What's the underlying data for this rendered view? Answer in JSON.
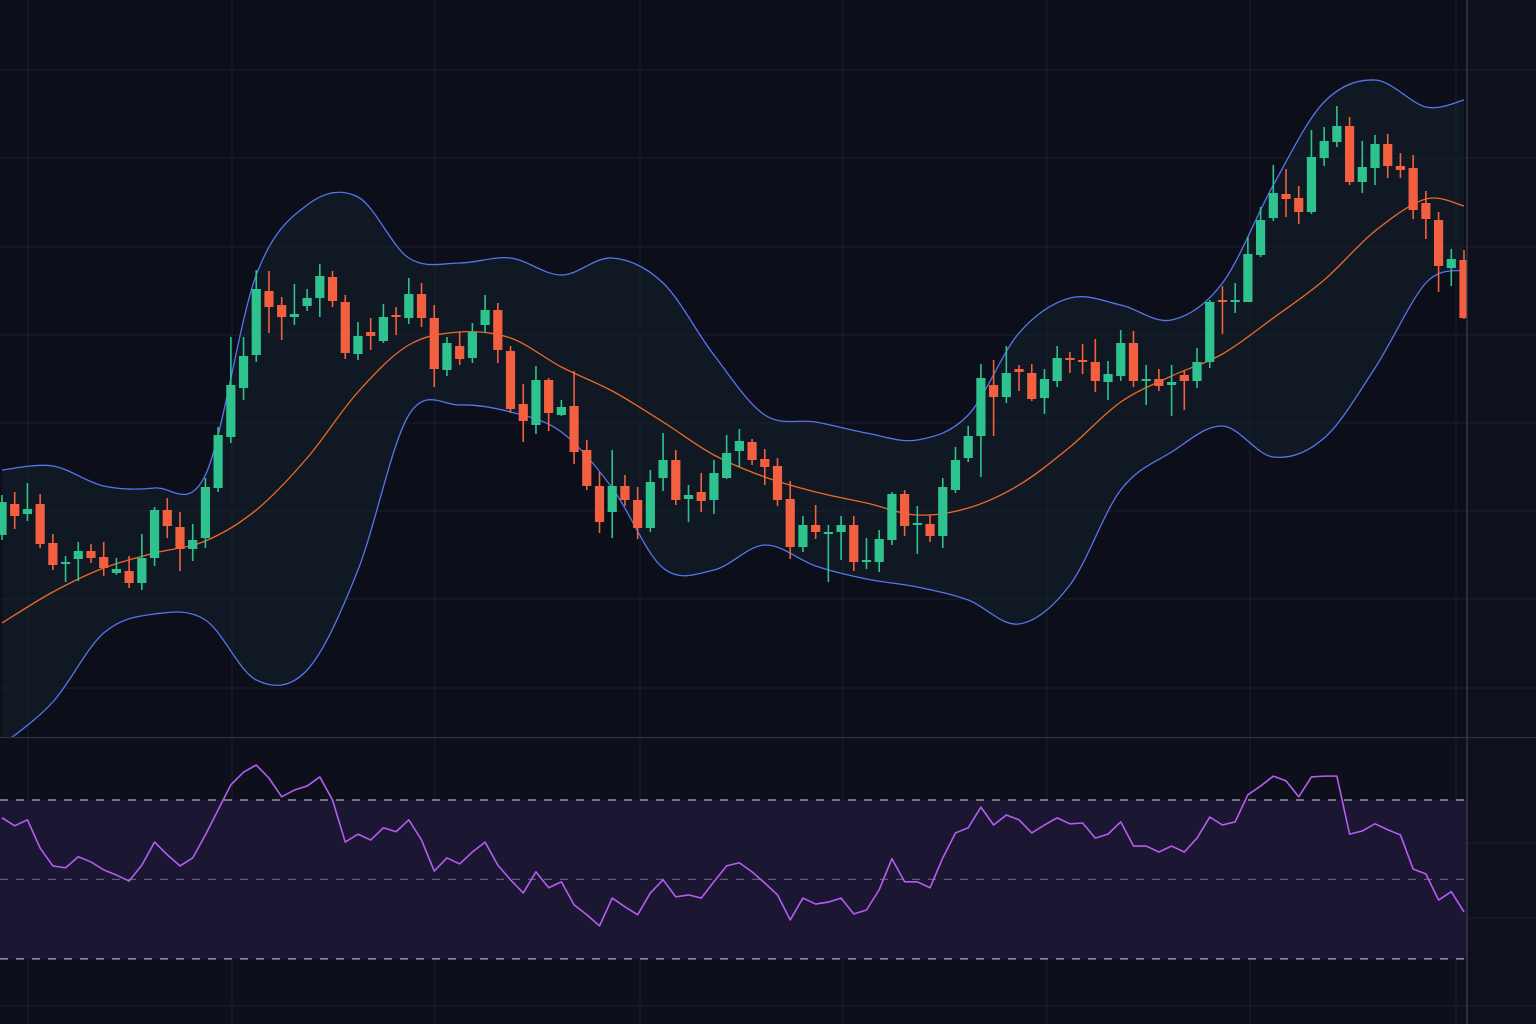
{
  "chart_data": [
    {
      "type": "candlestick",
      "title": "",
      "xlabel": "",
      "ylabel": "",
      "ylim": [
        26.3,
        100
      ],
      "grid": true,
      "colors": {
        "up": "#2ec28f",
        "down": "#f2603f",
        "bb_upper_lower": "#5874ee",
        "bb_middle": "#ee6a25",
        "bb_fill": "#14202e"
      },
      "candles_ohlc": [
        [
          46.5,
          50.5,
          46.0,
          49.8
        ],
        [
          49.6,
          50.8,
          47.1,
          48.4
        ],
        [
          48.6,
          51.7,
          47.9,
          49.1
        ],
        [
          49.6,
          50.6,
          45.2,
          45.6
        ],
        [
          45.7,
          46.6,
          43.0,
          43.5
        ],
        [
          43.6,
          44.4,
          41.8,
          43.8
        ],
        [
          44.1,
          45.8,
          41.9,
          44.9
        ],
        [
          44.9,
          45.6,
          43.7,
          44.2
        ],
        [
          44.3,
          45.8,
          42.4,
          43.2
        ],
        [
          42.7,
          44.2,
          42.5,
          43.1
        ],
        [
          42.9,
          44.4,
          41.2,
          41.7
        ],
        [
          41.7,
          46.6,
          41.0,
          44.2
        ],
        [
          44.2,
          49.3,
          43.4,
          49.0
        ],
        [
          49.0,
          50.2,
          46.2,
          47.4
        ],
        [
          47.3,
          48.8,
          42.9,
          45.1
        ],
        [
          45.1,
          47.6,
          43.9,
          46.0
        ],
        [
          46.2,
          52.2,
          45.2,
          51.3
        ],
        [
          51.2,
          57.3,
          50.8,
          56.5
        ],
        [
          56.3,
          66.3,
          55.7,
          61.5
        ],
        [
          61.2,
          66.3,
          60.0,
          64.4
        ],
        [
          64.5,
          73.0,
          63.8,
          71.1
        ],
        [
          70.9,
          72.9,
          66.7,
          69.3
        ],
        [
          69.5,
          70.3,
          66.0,
          68.3
        ],
        [
          68.3,
          71.6,
          67.5,
          68.6
        ],
        [
          69.4,
          71.1,
          68.9,
          70.2
        ],
        [
          70.2,
          73.6,
          68.3,
          72.4
        ],
        [
          72.3,
          72.9,
          69.3,
          69.9
        ],
        [
          69.8,
          70.5,
          64.1,
          64.7
        ],
        [
          64.6,
          67.8,
          64.0,
          66.4
        ],
        [
          66.8,
          68.2,
          65.0,
          66.4
        ],
        [
          65.9,
          69.6,
          65.7,
          68.3
        ],
        [
          68.5,
          69.3,
          66.5,
          68.3
        ],
        [
          68.2,
          72.2,
          67.6,
          70.6
        ],
        [
          70.6,
          71.7,
          67.3,
          68.2
        ],
        [
          68.2,
          69.5,
          61.3,
          63.1
        ],
        [
          63.0,
          66.3,
          62.4,
          65.7
        ],
        [
          65.4,
          66.8,
          63.5,
          64.1
        ],
        [
          64.2,
          67.7,
          63.7,
          66.8
        ],
        [
          67.5,
          70.5,
          66.7,
          69.0
        ],
        [
          69.0,
          69.7,
          63.7,
          65.0
        ],
        [
          64.9,
          65.4,
          58.7,
          59.1
        ],
        [
          59.6,
          61.6,
          55.8,
          57.9
        ],
        [
          57.5,
          63.4,
          56.6,
          62.0
        ],
        [
          62.0,
          62.2,
          56.9,
          58.7
        ],
        [
          58.5,
          60.0,
          58.4,
          59.3
        ],
        [
          59.4,
          62.9,
          53.6,
          54.8
        ],
        [
          55.0,
          56.0,
          51.0,
          51.4
        ],
        [
          51.4,
          52.8,
          46.7,
          47.8
        ],
        [
          48.8,
          55.0,
          46.2,
          51.4
        ],
        [
          51.4,
          52.5,
          49.4,
          50.0
        ],
        [
          50.0,
          51.3,
          46.1,
          47.2
        ],
        [
          47.2,
          53.0,
          46.8,
          51.8
        ],
        [
          52.2,
          56.7,
          50.9,
          54.0
        ],
        [
          54.0,
          55.0,
          49.5,
          50.0
        ],
        [
          50.1,
          51.5,
          47.8,
          50.5
        ],
        [
          50.8,
          52.7,
          48.8,
          49.9
        ],
        [
          50.0,
          54.0,
          48.6,
          52.7
        ],
        [
          52.2,
          56.5,
          52.1,
          54.7
        ],
        [
          54.9,
          57.1,
          53.3,
          55.9
        ],
        [
          55.8,
          56.1,
          53.5,
          54.0
        ],
        [
          54.1,
          55.1,
          51.5,
          53.3
        ],
        [
          53.4,
          54.2,
          49.4,
          50.0
        ],
        [
          50.1,
          51.9,
          44.1,
          45.3
        ],
        [
          45.3,
          48.4,
          44.8,
          47.5
        ],
        [
          47.5,
          49.5,
          46.1,
          46.8
        ],
        [
          46.6,
          47.5,
          41.8,
          46.8
        ],
        [
          46.8,
          48.4,
          44.0,
          47.5
        ],
        [
          47.5,
          48.4,
          42.9,
          43.8
        ],
        [
          43.8,
          46.2,
          43.1,
          44.0
        ],
        [
          43.8,
          47.0,
          42.8,
          46.1
        ],
        [
          46.0,
          50.8,
          45.5,
          50.6
        ],
        [
          50.6,
          51.0,
          46.4,
          47.4
        ],
        [
          47.6,
          49.4,
          44.6,
          47.7
        ],
        [
          47.6,
          48.5,
          45.8,
          46.4
        ],
        [
          46.4,
          52.2,
          45.2,
          51.3
        ],
        [
          51.0,
          55.3,
          50.7,
          54.0
        ],
        [
          54.2,
          57.4,
          53.8,
          56.4
        ],
        [
          56.4,
          63.6,
          52.3,
          62.2
        ],
        [
          61.5,
          64.0,
          56.4,
          60.3
        ],
        [
          60.3,
          65.4,
          59.7,
          62.7
        ],
        [
          63.1,
          63.5,
          60.9,
          62.8
        ],
        [
          62.7,
          63.6,
          59.9,
          60.1
        ],
        [
          60.2,
          63.1,
          58.6,
          62.1
        ],
        [
          61.9,
          65.4,
          61.3,
          64.2
        ],
        [
          64.2,
          64.8,
          62.7,
          64.0
        ],
        [
          64.0,
          65.6,
          62.6,
          63.9
        ],
        [
          63.8,
          66.1,
          60.8,
          61.9
        ],
        [
          61.8,
          63.9,
          60.0,
          62.6
        ],
        [
          62.4,
          67.0,
          61.9,
          65.7
        ],
        [
          65.7,
          66.9,
          61.3,
          61.9
        ],
        [
          61.9,
          63.5,
          59.5,
          62.1
        ],
        [
          62.1,
          63.1,
          60.9,
          61.4
        ],
        [
          61.5,
          63.5,
          58.4,
          61.8
        ],
        [
          62.5,
          62.9,
          59.0,
          61.9
        ],
        [
          61.9,
          65.2,
          61.2,
          63.8
        ],
        [
          63.8,
          70.0,
          63.2,
          69.8
        ],
        [
          70.0,
          71.4,
          66.6,
          69.8
        ],
        [
          69.9,
          71.7,
          68.7,
          70.0
        ],
        [
          69.8,
          76.3,
          69.8,
          74.6
        ],
        [
          74.5,
          79.3,
          74.3,
          78.0
        ],
        [
          78.2,
          83.5,
          77.9,
          80.7
        ],
        [
          80.6,
          83.1,
          78.3,
          80.1
        ],
        [
          80.2,
          81.4,
          77.6,
          78.8
        ],
        [
          78.8,
          87.0,
          78.6,
          84.3
        ],
        [
          84.2,
          87.3,
          83.4,
          85.9
        ],
        [
          85.8,
          89.4,
          85.3,
          87.4
        ],
        [
          87.4,
          88.3,
          81.5,
          81.8
        ],
        [
          81.8,
          85.9,
          80.7,
          83.3
        ],
        [
          83.2,
          86.5,
          81.5,
          85.6
        ],
        [
          85.6,
          86.6,
          82.2,
          83.4
        ],
        [
          83.4,
          84.7,
          82.2,
          83.0
        ],
        [
          83.2,
          84.5,
          78.1,
          79.0
        ],
        [
          79.7,
          80.9,
          76.1,
          78.1
        ],
        [
          78.0,
          78.8,
          70.8,
          73.4
        ],
        [
          73.2,
          75.1,
          71.4,
          74.1
        ],
        [
          74.0,
          75.0,
          68.1,
          68.2
        ]
      ],
      "bollinger": {
        "bar_index": [
          0,
          4,
          8,
          12,
          16,
          20,
          24,
          28,
          32,
          36,
          40,
          44,
          48,
          52,
          56,
          60,
          64,
          68,
          72,
          76,
          80,
          84,
          88,
          92,
          96,
          100,
          104,
          108,
          112,
          115
        ],
        "upper": [
          53.0,
          53.4,
          51.4,
          51.2,
          52.5,
          72.5,
          79.5,
          80.3,
          74.2,
          73.7,
          74.2,
          72.5,
          74.2,
          71.7,
          64.5,
          58.5,
          57.8,
          56.7,
          56.0,
          58.5,
          66.7,
          70.2,
          69.5,
          68.0,
          71.7,
          81.5,
          89.8,
          92.0,
          89.3,
          90.0
        ],
        "middle": [
          37.7,
          40.8,
          43.2,
          44.7,
          45.9,
          49.0,
          54.2,
          60.8,
          65.5,
          66.8,
          66.2,
          63.3,
          60.9,
          57.8,
          54.5,
          52.3,
          50.8,
          49.7,
          48.5,
          49.2,
          51.5,
          55.3,
          59.8,
          62.4,
          64.6,
          68.2,
          72.0,
          76.9,
          80.1,
          79.4
        ],
        "lower": [
          25.5,
          29.8,
          36.7,
          38.6,
          38.0,
          32.0,
          33.0,
          43.0,
          58.5,
          59.5,
          58.8,
          56.8,
          51.2,
          43.2,
          43.0,
          45.5,
          43.4,
          42.1,
          41.3,
          40.0,
          37.6,
          41.5,
          51.0,
          54.8,
          57.4,
          54.3,
          56.2,
          63.2,
          71.7,
          73.0
        ]
      }
    },
    {
      "type": "line",
      "title": "",
      "xlabel": "",
      "ylabel": "",
      "ylim": [
        13.6,
        85.6
      ],
      "grid": true,
      "levels": {
        "upper": 70,
        "mid": 50,
        "lower": 30
      },
      "colors": {
        "line": "#b55cf2",
        "zone": "#1b1733",
        "level": "#c9c9d2",
        "mid_level": "#5f5a78"
      },
      "values": [
        65.5,
        63.5,
        65.0,
        57.9,
        53.4,
        52.9,
        55.7,
        54.4,
        52.4,
        51.1,
        49.6,
        53.6,
        59.4,
        56.2,
        53.4,
        55.4,
        61.2,
        67.5,
        73.8,
        77.0,
        78.8,
        75.5,
        70.8,
        72.5,
        73.5,
        75.8,
        70.0,
        59.4,
        61.4,
        59.9,
        63.0,
        62.0,
        65.0,
        59.9,
        52.1,
        55.4,
        53.9,
        56.9,
        59.4,
        53.6,
        49.9,
        46.6,
        51.9,
        47.9,
        49.4,
        43.6,
        41.1,
        38.3,
        45.3,
        43.1,
        41.1,
        46.6,
        49.9,
        45.6,
        46.1,
        45.3,
        49.4,
        53.4,
        54.2,
        51.9,
        49.1,
        46.1,
        39.8,
        45.3,
        43.8,
        44.3,
        45.3,
        41.3,
        42.3,
        47.4,
        55.2,
        49.4,
        49.4,
        47.9,
        55.4,
        61.7,
        63.0,
        68.2,
        63.7,
        66.2,
        65.0,
        61.7,
        63.7,
        65.5,
        64.0,
        64.2,
        60.4,
        61.4,
        64.5,
        58.4,
        58.4,
        56.9,
        58.4,
        56.9,
        60.4,
        65.7,
        63.7,
        64.5,
        71.3,
        73.5,
        76.0,
        74.8,
        70.8,
        75.8,
        76.0,
        76.0,
        61.4,
        62.2,
        64.0,
        62.5,
        61.2,
        52.6,
        51.4,
        44.8,
        46.9,
        41.8
      ]
    }
  ]
}
